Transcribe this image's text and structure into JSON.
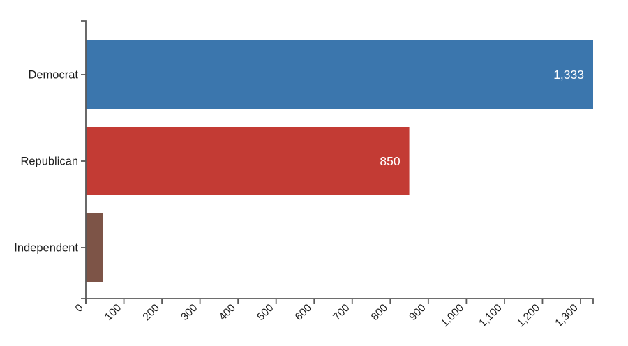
{
  "chart_data": {
    "type": "bar",
    "orientation": "horizontal",
    "title": "",
    "xlabel": "",
    "ylabel": "",
    "categories": [
      "Democrat",
      "Republican",
      "Independent"
    ],
    "values": [
      1333,
      850,
      45
    ],
    "value_labels": [
      "1,333",
      "850",
      ""
    ],
    "bar_colors": [
      "#3b76ad",
      "#c33b34",
      "#7d5447"
    ],
    "xlim": [
      0,
      1333
    ],
    "x_ticks": [
      0,
      100,
      200,
      300,
      400,
      500,
      600,
      700,
      800,
      900,
      1000,
      1100,
      1200,
      1300
    ],
    "x_tick_labels": [
      "0",
      "100",
      "200",
      "300",
      "400",
      "500",
      "600",
      "700",
      "800",
      "900",
      "1,000",
      "1,100",
      "1,200",
      "1,300"
    ],
    "x_tick_rotation": -45,
    "grid": false,
    "legend": null
  },
  "theme": {
    "background": "#ffffff",
    "axis_color": "#595959",
    "tick_label_color": "#1c1c1c",
    "category_label_color": "#1c1c1c",
    "value_label_color": "#ffffff"
  }
}
